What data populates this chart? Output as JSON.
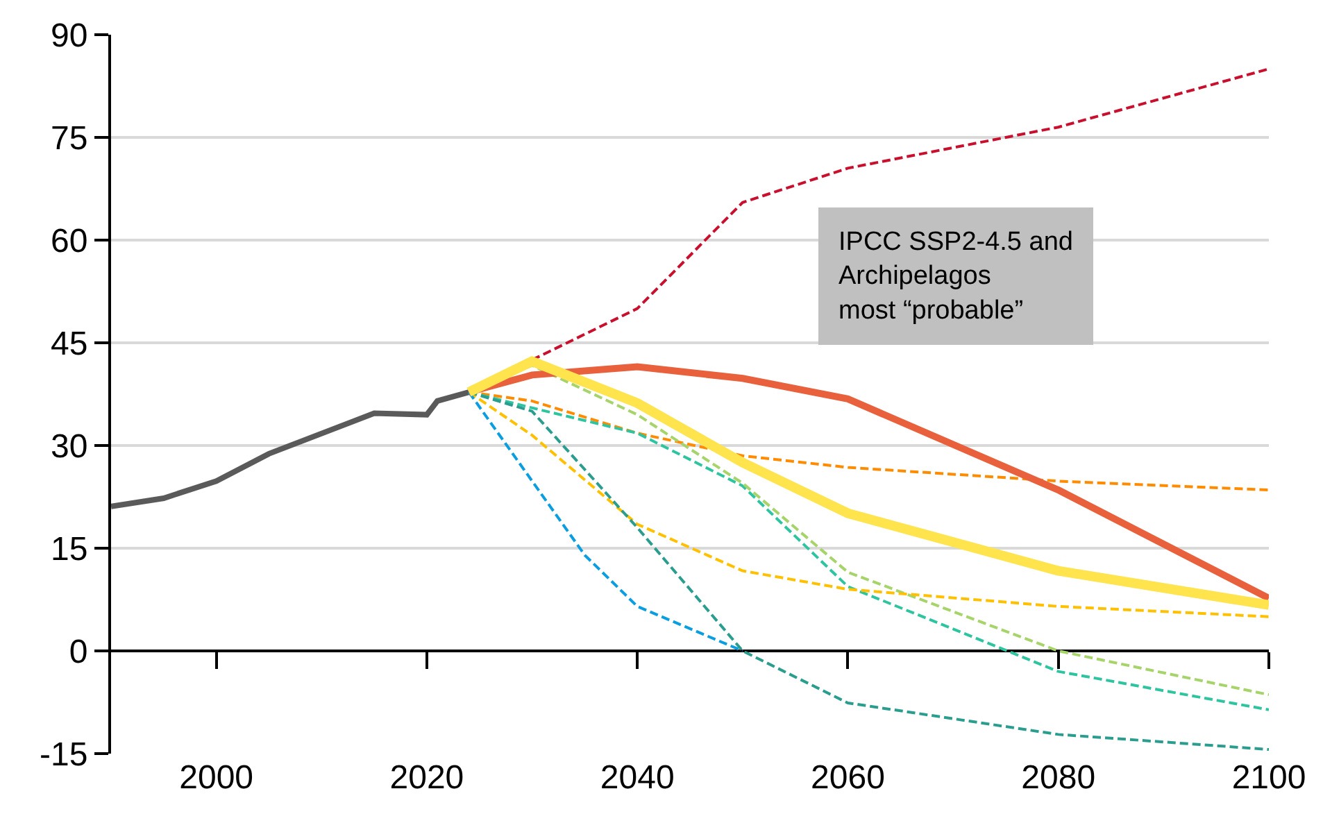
{
  "chart_data": {
    "type": "line",
    "xlim": [
      1990,
      2100
    ],
    "xticks": [
      2000,
      2020,
      2040,
      2060,
      2080,
      2100
    ],
    "ylim": [
      -15,
      90
    ],
    "yticks": [
      -15,
      0,
      15,
      30,
      45,
      60,
      75,
      90
    ],
    "grid": "y",
    "marker": "none",
    "annotations": [
      "IPCC SSP2-4.5 and\nArchipelagos\nmost “probable”"
    ],
    "series": [
      {
        "color": "#5a5a5a",
        "line_style": "solid",
        "x": [
          1990,
          1995,
          2000,
          2005,
          2015,
          2020,
          2021,
          2024
        ],
        "values": [
          21.1,
          22.3,
          24.8,
          28.8,
          34.7,
          34.5,
          36.5,
          37.8
        ]
      },
      {
        "color": "#c8102e",
        "line_style": "dashed",
        "x": [
          2030,
          2040,
          2050,
          2060,
          2080,
          2100
        ],
        "values": [
          42.5,
          50,
          65.5,
          70.5,
          76.5,
          85
        ]
      },
      {
        "color": "#ff8c00",
        "line_style": "dashed",
        "x": [
          2024,
          2030,
          2040,
          2050,
          2060,
          2080,
          2100
        ],
        "values": [
          37.8,
          36.5,
          31.8,
          28.5,
          26.8,
          24.8,
          23.5
        ]
      },
      {
        "color": "#2ec4a0",
        "line_style": "dashed",
        "x": [
          2024,
          2030,
          2040,
          2050,
          2060,
          2080,
          2100
        ],
        "values": [
          37.8,
          35.5,
          31.8,
          24.1,
          9.4,
          -3,
          -8.6
        ]
      },
      {
        "color": "#a6d46a",
        "line_style": "dashed",
        "x": [
          2024,
          2030,
          2040,
          2050,
          2060,
          2080,
          2100
        ],
        "values": [
          37.8,
          41.7,
          34.5,
          24.5,
          11.5,
          0,
          -6.4
        ]
      },
      {
        "color": "#ffc000",
        "line_style": "dashed",
        "x": [
          2024,
          2030,
          2040,
          2050,
          2060,
          2080,
          2100
        ],
        "values": [
          37.8,
          31.5,
          18.5,
          11.7,
          9,
          6.5,
          5
        ]
      },
      {
        "color": "#2a9d8f",
        "line_style": "dashed",
        "x": [
          2024,
          2030,
          2040,
          2050,
          2060,
          2080,
          2100
        ],
        "values": [
          37.8,
          35,
          18,
          0,
          -7.6,
          -12.2,
          -14.4
        ]
      },
      {
        "color": "#0a9ee0",
        "line_style": "dashed",
        "x": [
          2024,
          2035,
          2040,
          2050
        ],
        "values": [
          37.8,
          14,
          6.5,
          0
        ]
      },
      {
        "color": "#e8603c",
        "line_style": "solid",
        "x": [
          2024,
          2030,
          2040,
          2050,
          2060,
          2080,
          2100
        ],
        "values": [
          37.8,
          40.3,
          41.5,
          39.8,
          36.8,
          23.5,
          7.7
        ]
      },
      {
        "color": "#ffe44d",
        "line_style": "solid",
        "x": [
          2024,
          2030,
          2040,
          2050,
          2060,
          2080,
          2100
        ],
        "values": [
          37.8,
          42.3,
          36.2,
          27.5,
          20.1,
          11.7,
          6.7
        ]
      }
    ]
  }
}
